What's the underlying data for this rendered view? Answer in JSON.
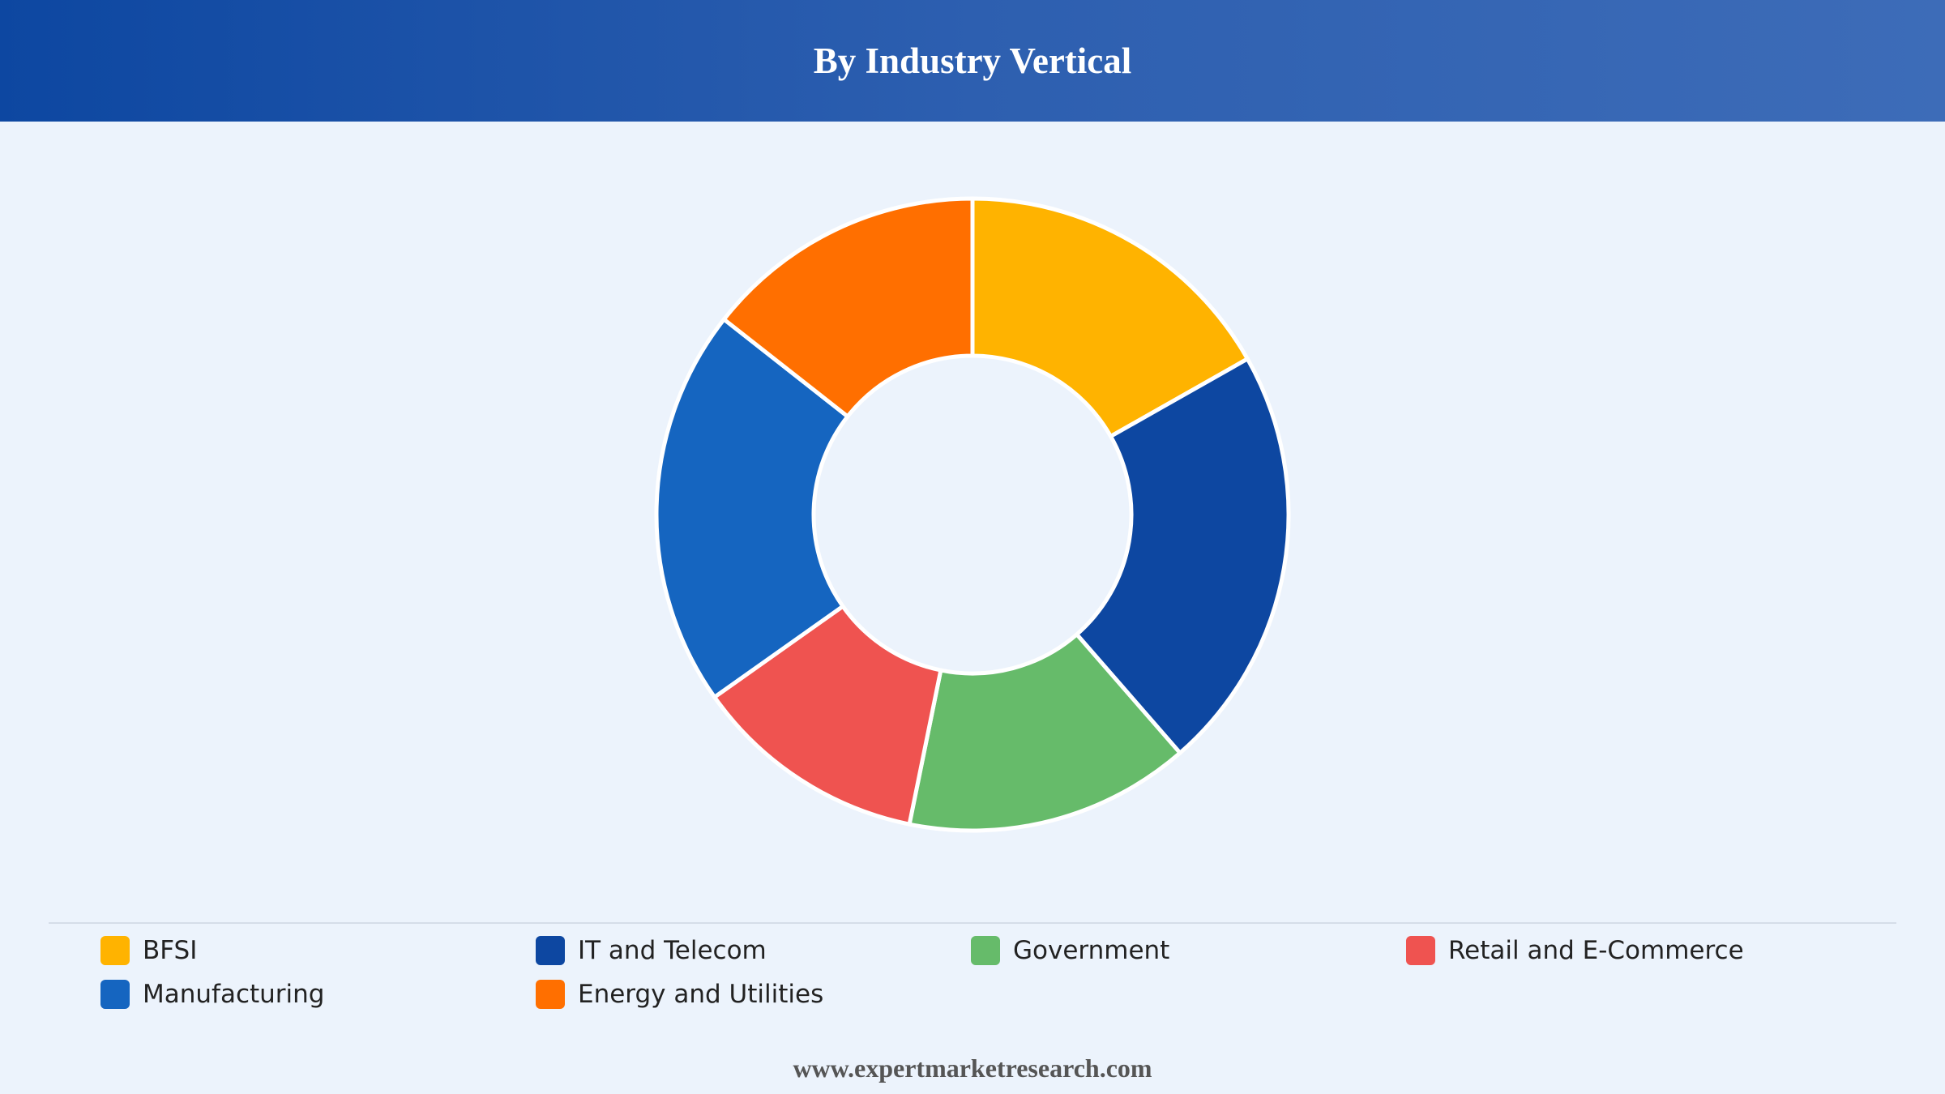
{
  "header": {
    "title": "By Industry Vertical"
  },
  "chart_data": {
    "type": "pie",
    "variant": "donut",
    "title": "By Industry Vertical",
    "categories": [
      "BFSI",
      "IT and Telecom",
      "Government",
      "Retail and E-Commerce",
      "Manufacturing",
      "Energy and Utilities"
    ],
    "values": [
      16.8,
      21.8,
      14.6,
      12.0,
      20.4,
      14.4
    ],
    "unit": "%",
    "colors": [
      "#ffb300",
      "#0d47a1",
      "#66bb6a",
      "#ef5350",
      "#1565c0",
      "#ff6f00"
    ],
    "legend_position": "bottom"
  },
  "legend": {
    "items": [
      {
        "label": "BFSI",
        "color": "#ffb300"
      },
      {
        "label": "IT and Telecom",
        "color": "#0d47a1"
      },
      {
        "label": "Government",
        "color": "#66bb6a"
      },
      {
        "label": "Retail and E-Commerce",
        "color": "#ef5350"
      },
      {
        "label": "Manufacturing",
        "color": "#1565c0"
      },
      {
        "label": "Energy and Utilities",
        "color": "#ff6f00"
      }
    ]
  },
  "footer": {
    "source": "www.expertmarketresearch.com"
  }
}
